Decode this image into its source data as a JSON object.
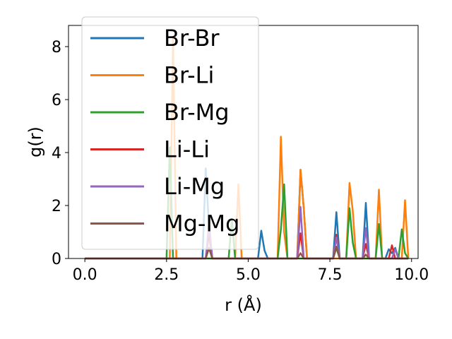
{
  "chart_data": {
    "type": "line",
    "xlabel": "r (Å)",
    "ylabel": "g(r)",
    "xlim": [
      -0.5,
      10.2
    ],
    "ylim": [
      0,
      8.8
    ],
    "xticks": [
      0.0,
      2.5,
      5.0,
      7.5,
      10.0
    ],
    "xtick_labels": [
      "0.0",
      "2.5",
      "5.0",
      "7.5",
      "10.0"
    ],
    "yticks": [
      0,
      2,
      4,
      6,
      8
    ],
    "ytick_labels": [
      "0",
      "2",
      "4",
      "6",
      "8"
    ],
    "grid": false,
    "legend_position": "upper-left",
    "series": [
      {
        "name": "Br-Br",
        "color": "#1f77b4",
        "points": [
          [
            0,
            0
          ],
          [
            3.6,
            0
          ],
          [
            3.7,
            3.4
          ],
          [
            3.8,
            1.2
          ],
          [
            3.9,
            0
          ],
          [
            5.3,
            0
          ],
          [
            5.4,
            1.05
          ],
          [
            5.5,
            0.3
          ],
          [
            5.6,
            0
          ],
          [
            6.5,
            0
          ],
          [
            6.6,
            3.35
          ],
          [
            6.7,
            1.9
          ],
          [
            6.8,
            0
          ],
          [
            7.6,
            0
          ],
          [
            7.7,
            1.75
          ],
          [
            7.8,
            0
          ],
          [
            8.5,
            0
          ],
          [
            8.6,
            2.1
          ],
          [
            8.7,
            0
          ],
          [
            9.2,
            0
          ],
          [
            9.3,
            0.35
          ],
          [
            9.4,
            0.2
          ],
          [
            9.5,
            0.4
          ],
          [
            9.6,
            0
          ],
          [
            9.9,
            0
          ]
        ]
      },
      {
        "name": "Br-Li",
        "color": "#ff7f0e",
        "points": [
          [
            0,
            0
          ],
          [
            2.6,
            0
          ],
          [
            2.7,
            8.3
          ],
          [
            2.8,
            0
          ],
          [
            4.6,
            0
          ],
          [
            4.7,
            2.8
          ],
          [
            4.8,
            0
          ],
          [
            5.9,
            0
          ],
          [
            6.0,
            4.6
          ],
          [
            6.1,
            1.0
          ],
          [
            6.2,
            0
          ],
          [
            6.5,
            0
          ],
          [
            6.6,
            3.35
          ],
          [
            6.7,
            1.9
          ],
          [
            6.8,
            0
          ],
          [
            8.0,
            0
          ],
          [
            8.1,
            2.85
          ],
          [
            8.2,
            1.8
          ],
          [
            8.3,
            0
          ],
          [
            8.9,
            0
          ],
          [
            9.0,
            2.6
          ],
          [
            9.1,
            0
          ],
          [
            9.7,
            0
          ],
          [
            9.8,
            2.2
          ],
          [
            9.9,
            0
          ]
        ]
      },
      {
        "name": "Br-Mg",
        "color": "#2ca02c",
        "points": [
          [
            0,
            0
          ],
          [
            2.5,
            0
          ],
          [
            2.6,
            4.2
          ],
          [
            2.7,
            0
          ],
          [
            4.4,
            0
          ],
          [
            4.5,
            1.5
          ],
          [
            4.6,
            0
          ],
          [
            5.9,
            0
          ],
          [
            6.0,
            1.1
          ],
          [
            6.1,
            2.8
          ],
          [
            6.2,
            0
          ],
          [
            7.6,
            0
          ],
          [
            7.7,
            0.4
          ],
          [
            7.8,
            0
          ],
          [
            8.0,
            0
          ],
          [
            8.1,
            1.9
          ],
          [
            8.2,
            0.6
          ],
          [
            8.3,
            0
          ],
          [
            8.9,
            0
          ],
          [
            9.0,
            1.3
          ],
          [
            9.1,
            0
          ],
          [
            9.6,
            0
          ],
          [
            9.7,
            1.1
          ],
          [
            9.8,
            0.2
          ],
          [
            9.9,
            0
          ]
        ]
      },
      {
        "name": "Li-Li",
        "color": "#d62728",
        "points": [
          [
            0,
            0
          ],
          [
            3.7,
            0
          ],
          [
            3.8,
            0.9
          ],
          [
            3.9,
            0
          ],
          [
            6.5,
            0
          ],
          [
            6.6,
            0.95
          ],
          [
            6.7,
            0
          ],
          [
            7.6,
            0
          ],
          [
            7.7,
            0.9
          ],
          [
            7.8,
            0
          ],
          [
            8.5,
            0
          ],
          [
            8.6,
            0.55
          ],
          [
            8.7,
            0
          ],
          [
            9.3,
            0
          ],
          [
            9.4,
            0.5
          ],
          [
            9.5,
            0
          ],
          [
            9.9,
            0
          ]
        ]
      },
      {
        "name": "Li-Mg",
        "color": "#9467bd",
        "points": [
          [
            0,
            0
          ],
          [
            3.7,
            0
          ],
          [
            3.8,
            1.35
          ],
          [
            3.9,
            0
          ],
          [
            6.5,
            0
          ],
          [
            6.6,
            1.95
          ],
          [
            6.7,
            0
          ],
          [
            7.6,
            0
          ],
          [
            7.7,
            0.8
          ],
          [
            7.8,
            0
          ],
          [
            8.5,
            0
          ],
          [
            8.6,
            1.15
          ],
          [
            8.7,
            0
          ],
          [
            9.4,
            0
          ],
          [
            9.5,
            0.35
          ],
          [
            9.6,
            0
          ],
          [
            9.9,
            0
          ]
        ]
      },
      {
        "name": "Mg-Mg",
        "color": "#8c564b",
        "points": [
          [
            0,
            0
          ],
          [
            3.7,
            0
          ],
          [
            3.8,
            0.4
          ],
          [
            3.9,
            0
          ],
          [
            6.5,
            0
          ],
          [
            6.6,
            0.2
          ],
          [
            6.7,
            0
          ],
          [
            7.6,
            0
          ],
          [
            7.7,
            0.45
          ],
          [
            7.8,
            0
          ],
          [
            8.5,
            0
          ],
          [
            8.6,
            0.15
          ],
          [
            8.7,
            0
          ],
          [
            9.9,
            0
          ]
        ]
      }
    ]
  }
}
